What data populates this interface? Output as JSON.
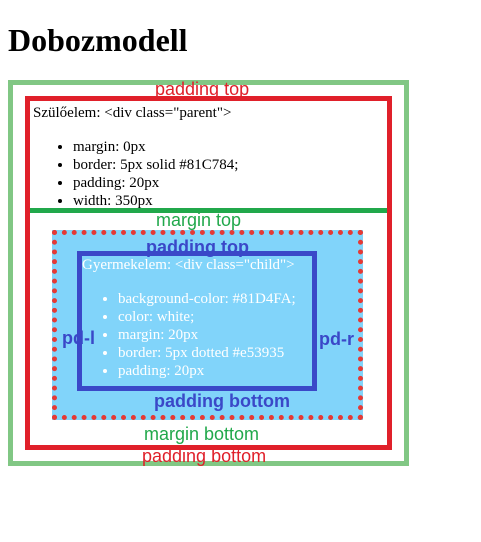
{
  "title": "Dobozmodell",
  "parent": {
    "heading": "Szülőelem: <div class=\"parent\">",
    "items": [
      "margin: 0px",
      "border: 5px solid #81C784;",
      "padding: 20px",
      "width: 350px"
    ]
  },
  "child": {
    "heading": "Gyermekelem: <div class=\"child\">",
    "items": [
      "background-color: #81D4FA;",
      "color: white;",
      "margin: 20px",
      "border: 5px dotted #e53935",
      "padding: 20px"
    ]
  },
  "annotations": {
    "padding_top_outer": "padding top",
    "margin_top": "margin top",
    "padding_top_inner": "padding top",
    "pd_l": "pd-l",
    "pd_r": "pd-r",
    "padding_bottom_inner": "padding bottom",
    "margin_bottom": "margin bottom",
    "padding_bottom_outer": "padding bottom"
  },
  "colors": {
    "parent_border": "#81C784",
    "child_background": "#81D4FA",
    "child_border": "#e53935",
    "annotation_red": "#e0202a",
    "annotation_green": "#21a84b",
    "annotation_blue": "#3a48c8"
  }
}
